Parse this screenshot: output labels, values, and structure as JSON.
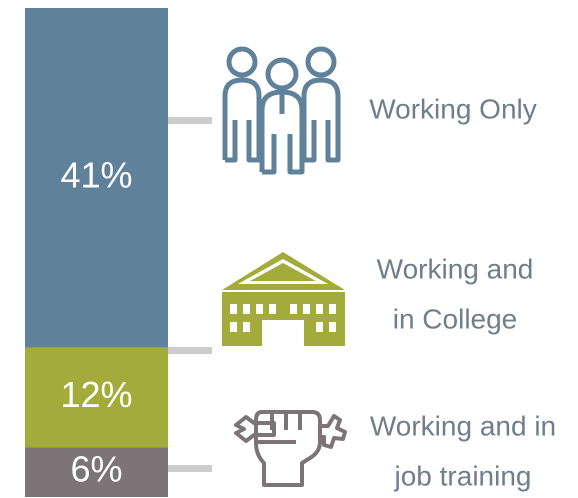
{
  "chart_data": {
    "type": "bar",
    "stacked": true,
    "categories": [
      [
        "Working Only"
      ],
      [
        "Working and",
        "in College"
      ],
      [
        "Working and in",
        "job training"
      ]
    ],
    "values": [
      41,
      12,
      6
    ],
    "value_labels": [
      "41%",
      "12%",
      "6%"
    ],
    "colors": [
      "#5f8199",
      "#a3ab3b",
      "#7d7477"
    ]
  }
}
